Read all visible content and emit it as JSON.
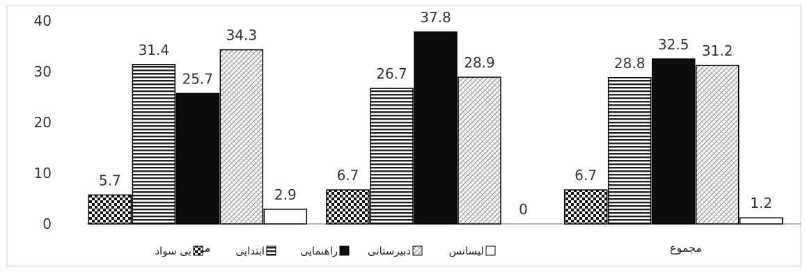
{
  "chart_data": {
    "type": "bar",
    "title": "",
    "xlabel": "",
    "ylabel": "",
    "ylim": [
      0,
      40
    ],
    "yticks": [
      0,
      10,
      20,
      30,
      40
    ],
    "grid": false,
    "legend_position": "bottom",
    "groups": [
      {
        "label": "مرد",
        "values": [
          5.7,
          31.4,
          25.7,
          34.3,
          2.9
        ]
      },
      {
        "label": "",
        "values": [
          6.7,
          26.7,
          37.8,
          28.9,
          0
        ]
      },
      {
        "label": "مجموع",
        "values": [
          6.7,
          28.8,
          32.5,
          31.2,
          1.2
        ]
      }
    ],
    "series": [
      {
        "name": "بی سواد",
        "pattern": "checker",
        "color": "#111111"
      },
      {
        "name": "ابتدایی",
        "pattern": "horizontal-lines",
        "color": "#222222"
      },
      {
        "name": "راهنمایی",
        "pattern": "solid",
        "color": "#0d0d0d"
      },
      {
        "name": "دبیرستانی",
        "pattern": "light-dots",
        "color": "#777777"
      },
      {
        "name": "لیسانس",
        "pattern": "empty",
        "color": "#000000"
      }
    ]
  }
}
